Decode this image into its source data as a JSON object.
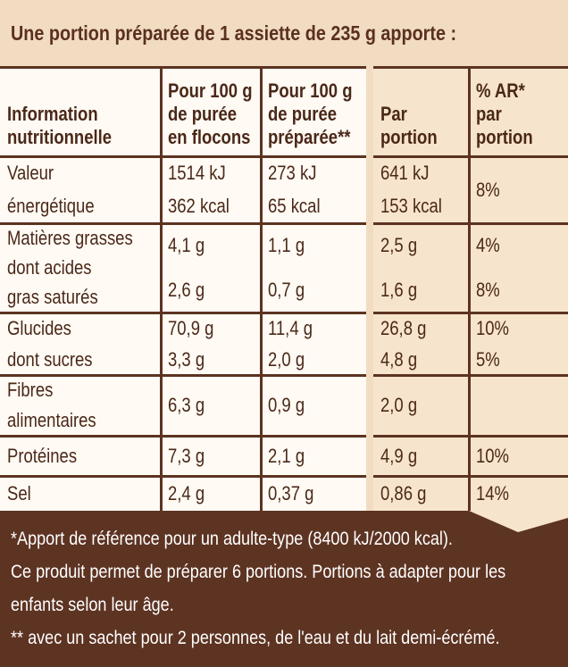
{
  "header": {
    "title": "Une portion préparée de 1 assiette de 235 g apporte :"
  },
  "table": {
    "headers": [
      [
        "Information",
        "nutritionnelle"
      ],
      [
        "Pour 100 g",
        "de purée",
        "en flocons"
      ],
      [
        "Pour 100 g",
        "de purée",
        "préparée**"
      ],
      [
        "Par",
        "portion"
      ],
      [
        "% AR*",
        "par",
        "portion"
      ]
    ],
    "rows": [
      [
        [
          "Valeur",
          "énergétique"
        ],
        [
          "1514 kJ",
          "362 kcal"
        ],
        [
          "273 kJ",
          "65 kcal"
        ],
        [
          "641 kJ",
          "153 kcal"
        ],
        [
          "8%"
        ]
      ],
      [
        [
          "Matières grasses",
          "dont acides",
          "gras saturés"
        ],
        [
          "4,1 g",
          "2,6 g"
        ],
        [
          "1,1 g",
          "0,7 g"
        ],
        [
          "2,5 g",
          "1,6 g"
        ],
        [
          "4%",
          "8%"
        ]
      ],
      [
        [
          "Glucides",
          "dont sucres"
        ],
        [
          "70,9 g",
          "3,3 g"
        ],
        [
          "11,4 g",
          "2,0 g"
        ],
        [
          "26,8 g",
          "4,8 g"
        ],
        [
          "10%",
          "5%"
        ]
      ],
      [
        [
          "Fibres",
          "alimentaires"
        ],
        [
          "6,3 g"
        ],
        [
          "0,9 g"
        ],
        [
          "2,0 g"
        ],
        []
      ],
      [
        [
          "Protéines"
        ],
        [
          "7,3 g"
        ],
        [
          "2,1 g"
        ],
        [
          "4,9 g"
        ],
        [
          "10%"
        ]
      ],
      [
        [
          "Sel"
        ],
        [
          "2,4 g"
        ],
        [
          "0,37 g"
        ],
        [
          "0,86 g"
        ],
        [
          "14%"
        ]
      ]
    ]
  },
  "footer": {
    "lines": [
      "*Apport de référence pour un adulte-type (8400 kJ/2000 kcal).",
      "Ce produit permet de préparer 6 portions. Portions à adapter pour les",
      "enfants selon leur âge.",
      "** avec un sachet pour 2 personnes, de l'eau et du lait demi-écrémé."
    ]
  }
}
